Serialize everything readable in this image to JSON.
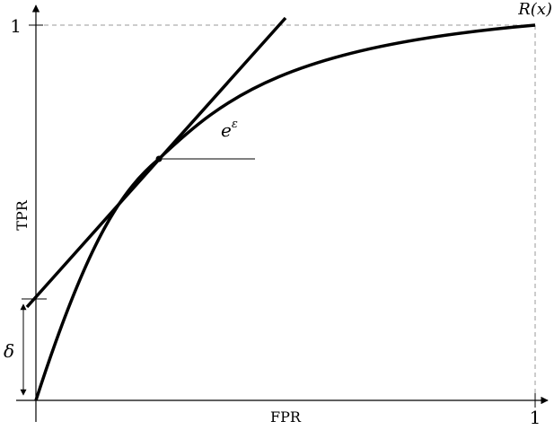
{
  "axes": {
    "x_label": "FPR",
    "y_label": "TPR",
    "x_tick_label": "1",
    "y_tick_label": "1"
  },
  "annotations": {
    "curve_label": "R(x)",
    "slope_label_base": "e",
    "slope_label_exponent": "ε",
    "offset_label": "δ"
  },
  "colors": {
    "line": "#000000",
    "guide": "#999999",
    "background": "#ffffff"
  }
}
